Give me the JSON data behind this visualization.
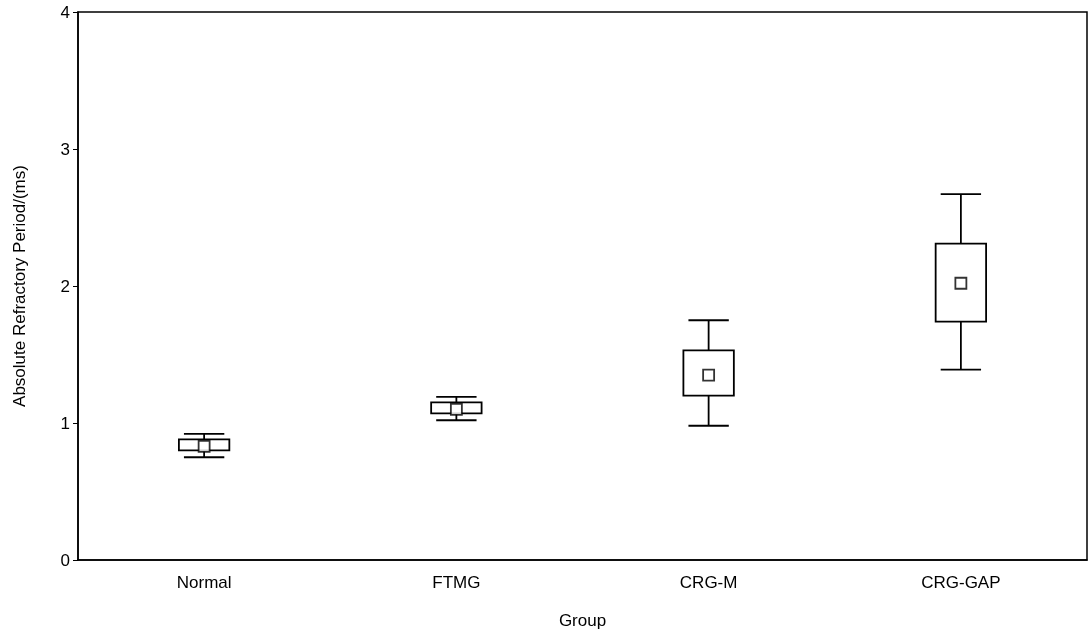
{
  "chart_data": {
    "type": "box",
    "xlabel": "Group",
    "ylabel": "Absolute Refractory Period/(ms)",
    "categories": [
      "Normal",
      "FTMG",
      "CRG-M",
      "CRG-GAP"
    ],
    "boxes": [
      {
        "low": 0.75,
        "q1": 0.8,
        "median": 0.83,
        "q3": 0.88,
        "high": 0.92
      },
      {
        "low": 1.02,
        "q1": 1.07,
        "median": 1.1,
        "q3": 1.15,
        "high": 1.19
      },
      {
        "low": 0.98,
        "q1": 1.2,
        "median": 1.35,
        "q3": 1.53,
        "high": 1.75
      },
      {
        "low": 1.39,
        "q1": 1.74,
        "median": 2.02,
        "q3": 2.31,
        "high": 2.67
      }
    ],
    "color": "#000000",
    "marker": "square",
    "ylim": [
      0,
      4
    ],
    "yticks": [
      0,
      1,
      2,
      3,
      4
    ]
  }
}
